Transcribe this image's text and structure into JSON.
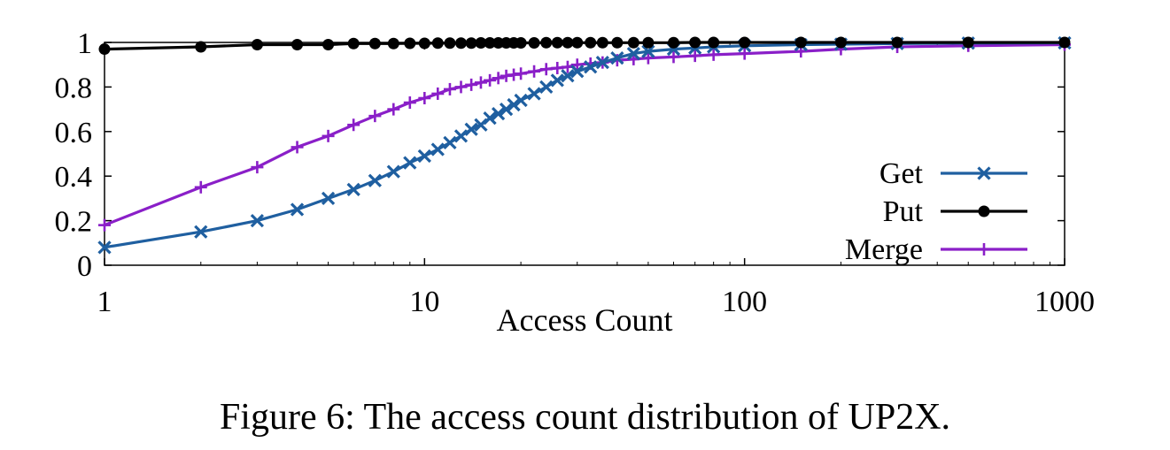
{
  "caption": "Figure 6: The access count distribution of UP2X.",
  "chart_data": {
    "type": "line",
    "xlabel": "Access Count",
    "ylabel": "",
    "x_scale": "log",
    "xlim": [
      1,
      1000
    ],
    "ylim": [
      0,
      1
    ],
    "x_ticks": [
      1,
      10,
      100,
      1000
    ],
    "x_tick_labels": [
      "1",
      "10",
      "100",
      "1000"
    ],
    "y_ticks": [
      0,
      0.2,
      0.4,
      0.6,
      0.8,
      1
    ],
    "y_tick_labels": [
      "0",
      "0.2",
      "0.4",
      "0.6",
      "0.8",
      "1"
    ],
    "grid": false,
    "legend_position": "right",
    "series": [
      {
        "name": "Get",
        "color": "#1f5fa0",
        "marker": "x",
        "x": [
          1,
          2,
          3,
          4,
          5,
          6,
          7,
          8,
          9,
          10,
          11,
          12,
          13,
          14,
          15,
          16,
          17,
          18,
          19,
          20,
          22,
          24,
          26,
          28,
          30,
          33,
          36,
          40,
          45,
          50,
          60,
          70,
          80,
          100,
          150,
          200,
          300,
          500,
          1000
        ],
        "y": [
          0.08,
          0.15,
          0.2,
          0.25,
          0.3,
          0.34,
          0.38,
          0.42,
          0.46,
          0.49,
          0.52,
          0.55,
          0.58,
          0.61,
          0.63,
          0.66,
          0.68,
          0.7,
          0.72,
          0.74,
          0.77,
          0.8,
          0.83,
          0.85,
          0.87,
          0.89,
          0.91,
          0.93,
          0.95,
          0.96,
          0.97,
          0.975,
          0.98,
          0.985,
          0.99,
          0.992,
          0.995,
          0.997,
          0.998
        ]
      },
      {
        "name": "Put",
        "color": "#000000",
        "marker": "circle",
        "x": [
          1,
          2,
          3,
          4,
          5,
          6,
          7,
          8,
          9,
          10,
          11,
          12,
          13,
          14,
          15,
          16,
          17,
          18,
          19,
          20,
          22,
          24,
          26,
          28,
          30,
          33,
          36,
          40,
          45,
          50,
          60,
          70,
          80,
          100,
          150,
          200,
          300,
          500,
          1000
        ],
        "y": [
          0.97,
          0.98,
          0.99,
          0.99,
          0.99,
          0.995,
          0.995,
          0.995,
          0.996,
          0.996,
          0.997,
          0.997,
          0.997,
          0.997,
          0.998,
          0.998,
          0.998,
          0.998,
          0.998,
          0.998,
          0.998,
          0.999,
          0.999,
          0.999,
          0.999,
          0.999,
          0.999,
          0.999,
          0.999,
          0.999,
          0.999,
          1,
          1,
          1,
          1,
          1,
          1,
          1,
          1
        ]
      },
      {
        "name": "Merge",
        "color": "#8a1fc8",
        "marker": "plus",
        "x": [
          1,
          2,
          3,
          4,
          5,
          6,
          7,
          8,
          9,
          10,
          11,
          12,
          13,
          14,
          15,
          16,
          17,
          18,
          19,
          20,
          22,
          24,
          26,
          28,
          30,
          33,
          36,
          40,
          45,
          50,
          60,
          70,
          80,
          100,
          150,
          200,
          300,
          500,
          1000
        ],
        "y": [
          0.18,
          0.35,
          0.44,
          0.53,
          0.58,
          0.63,
          0.67,
          0.7,
          0.73,
          0.75,
          0.77,
          0.79,
          0.8,
          0.81,
          0.82,
          0.83,
          0.84,
          0.85,
          0.855,
          0.86,
          0.87,
          0.88,
          0.885,
          0.89,
          0.9,
          0.905,
          0.91,
          0.92,
          0.925,
          0.93,
          0.935,
          0.94,
          0.945,
          0.95,
          0.96,
          0.97,
          0.98,
          0.985,
          0.99
        ]
      }
    ]
  }
}
